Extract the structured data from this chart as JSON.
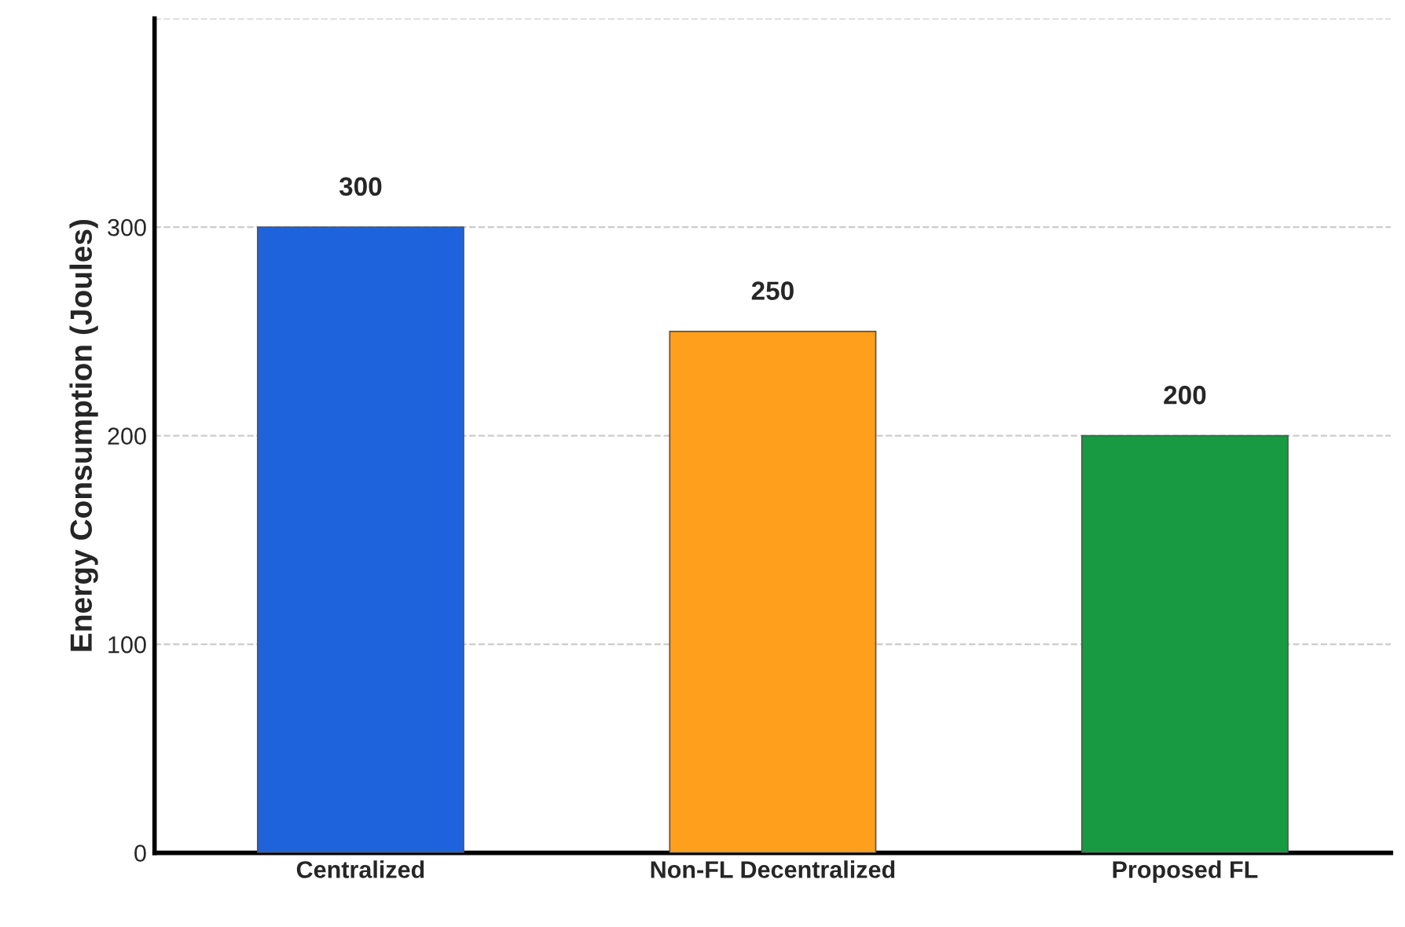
{
  "chart_data": {
    "type": "bar",
    "ylabel": "Energy Consumption (Joules)",
    "categories": [
      "Centralized",
      "Non-FL Decentralized",
      "Proposed FL"
    ],
    "values": [
      300,
      250,
      200
    ],
    "colors": [
      "#1f63dc",
      "#ff9f1c",
      "#189a42"
    ],
    "ylim": [
      0,
      400
    ],
    "yticks": [
      0,
      100,
      200,
      300,
      {
        "value": 400,
        "label": null
      }
    ],
    "grid": "y",
    "data_labels": true
  }
}
